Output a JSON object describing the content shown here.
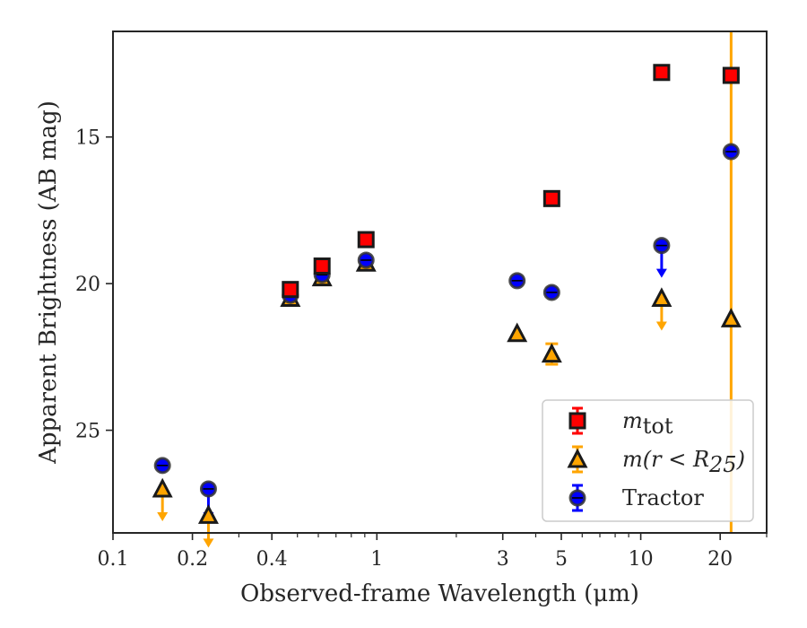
{
  "chart_data": {
    "type": "scatter",
    "xlabel": "Observed-frame Wavelength (μm)",
    "ylabel": "Apparent Brightness (AB mag)",
    "x_scale": "log",
    "y_inverted": true,
    "xlim": [
      0.1,
      30
    ],
    "ylim": [
      28.5,
      11.4
    ],
    "x_ticks": [
      0.1,
      0.2,
      0.4,
      1,
      3,
      5,
      10,
      20
    ],
    "x_tick_labels": [
      "0.1",
      "0.2",
      "0.4",
      "1",
      "3",
      "5",
      "10",
      "20"
    ],
    "y_ticks": [
      15,
      20,
      25
    ],
    "y_tick_labels": [
      "15",
      "20",
      "25"
    ],
    "legend_position": "lower-right",
    "series": [
      {
        "key": "mtot",
        "legend_base": "m",
        "legend_sub": "tot",
        "marker": "square",
        "color": "#ff0000",
        "errorbar_color": "#ff0000",
        "points": [
          {
            "x": 0.47,
            "y": 20.2
          },
          {
            "x": 0.62,
            "y": 19.4
          },
          {
            "x": 0.91,
            "y": 18.5
          },
          {
            "x": 4.6,
            "y": 17.1
          },
          {
            "x": 12.0,
            "y": 12.8
          },
          {
            "x": 22.0,
            "y": 12.9
          }
        ]
      },
      {
        "key": "mr25",
        "legend_base": "m(r < R",
        "legend_sub": "25",
        "legend_tail": ")",
        "marker": "triangle",
        "color": "#ffa500",
        "errorbar_color": "#ffa500",
        "points": [
          {
            "x": 0.154,
            "y": 27.0,
            "upper_limit": true
          },
          {
            "x": 0.23,
            "y": 27.9,
            "upper_limit": true
          },
          {
            "x": 0.47,
            "y": 20.5
          },
          {
            "x": 0.62,
            "y": 19.8
          },
          {
            "x": 0.91,
            "y": 19.3
          },
          {
            "x": 3.4,
            "y": 21.7
          },
          {
            "x": 4.6,
            "y": 22.4,
            "yerr": 0.35
          },
          {
            "x": 12.0,
            "y": 20.5,
            "upper_limit": true
          },
          {
            "x": 22.0,
            "y": 21.2,
            "full_vertical_errorbar": true
          }
        ]
      },
      {
        "key": "tractor",
        "legend_base": "Tractor",
        "marker": "circle",
        "color": "#0000ff",
        "errorbar_color": "#0000ff",
        "points": [
          {
            "x": 0.154,
            "y": 26.2
          },
          {
            "x": 0.23,
            "y": 27.0,
            "upper_limit": true
          },
          {
            "x": 0.47,
            "y": 20.4
          },
          {
            "x": 0.62,
            "y": 19.7
          },
          {
            "x": 0.91,
            "y": 19.2
          },
          {
            "x": 3.4,
            "y": 19.9
          },
          {
            "x": 4.6,
            "y": 20.3
          },
          {
            "x": 12.0,
            "y": 18.7,
            "upper_limit": true
          },
          {
            "x": 22.0,
            "y": 15.5
          }
        ]
      }
    ]
  }
}
